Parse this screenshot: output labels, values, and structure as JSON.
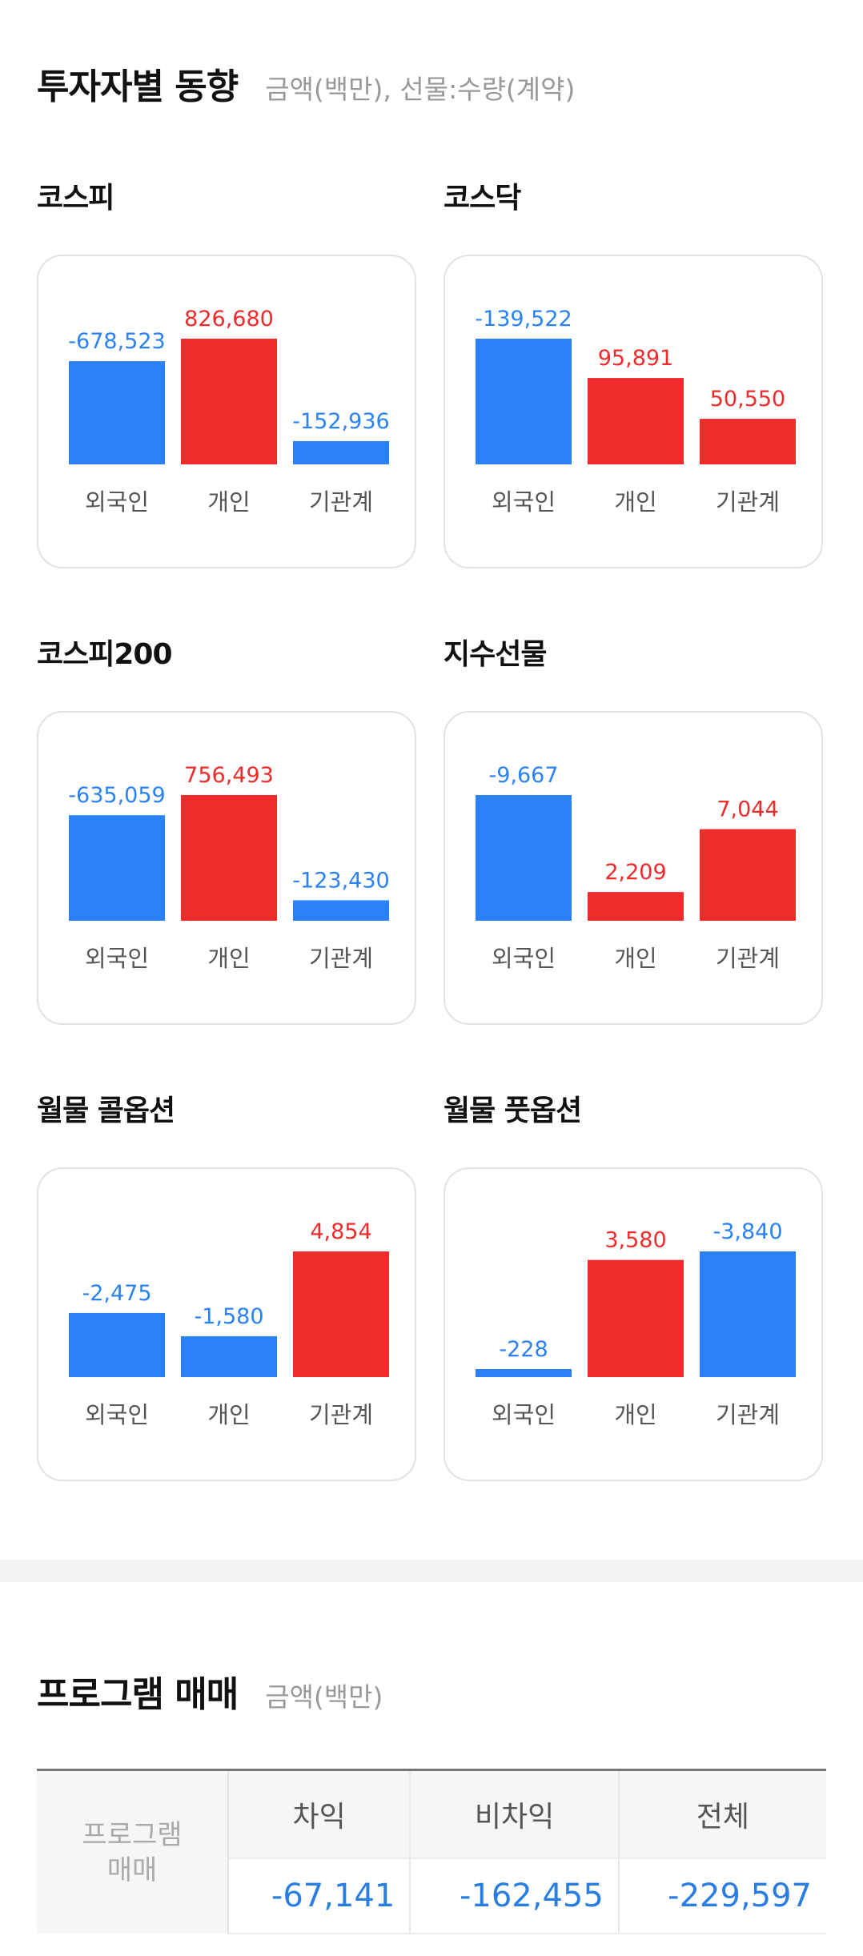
{
  "investor": {
    "title": "투자자별 동향",
    "unit": "금액(백만), 선물:수량(계약)",
    "colors": {
      "positive": "#ef2b2b",
      "negative": "#2a82f6"
    },
    "charts": [
      {
        "title": "코스피",
        "categories": [
          "외국인",
          "개인",
          "기관계"
        ],
        "labels": [
          "-678,523",
          "826,680",
          "-152,936"
        ],
        "values": [
          -678523,
          826680,
          -152936
        ]
      },
      {
        "title": "코스닥",
        "categories": [
          "외국인",
          "개인",
          "기관계"
        ],
        "labels": [
          "-139,522",
          "95,891",
          "50,550"
        ],
        "values": [
          -139522,
          95891,
          50550
        ]
      },
      {
        "title": "코스피200",
        "categories": [
          "외국인",
          "개인",
          "기관계"
        ],
        "labels": [
          "-635,059",
          "756,493",
          "-123,430"
        ],
        "values": [
          -635059,
          756493,
          -123430
        ]
      },
      {
        "title": "지수선물",
        "categories": [
          "외국인",
          "개인",
          "기관계"
        ],
        "labels": [
          "-9,667",
          "2,209",
          "7,044"
        ],
        "values": [
          -9667,
          2209,
          7044
        ]
      },
      {
        "title": "월물 콜옵션",
        "categories": [
          "외국인",
          "개인",
          "기관계"
        ],
        "labels": [
          "-2,475",
          "-1,580",
          "4,854"
        ],
        "values": [
          -2475,
          -1580,
          4854
        ]
      },
      {
        "title": "월물 풋옵션",
        "categories": [
          "외국인",
          "개인",
          "기관계"
        ],
        "labels": [
          "-228",
          "3,580",
          "-3,840"
        ],
        "values": [
          -228,
          3580,
          -3840
        ]
      }
    ]
  },
  "program": {
    "title": "프로그램 매매",
    "unit": "금액(백만)",
    "row_header_line1": "프로그램",
    "row_header_line2": "매매",
    "columns": [
      "차익",
      "비차익",
      "전체"
    ],
    "values": [
      "-67,141",
      "-162,455",
      "-229,597"
    ]
  },
  "chart_data": [
    {
      "type": "bar",
      "title": "코스피",
      "categories": [
        "외국인",
        "개인",
        "기관계"
      ],
      "values": [
        -678523,
        826680,
        -152936
      ]
    },
    {
      "type": "bar",
      "title": "코스닥",
      "categories": [
        "외국인",
        "개인",
        "기관계"
      ],
      "values": [
        -139522,
        95891,
        50550
      ]
    },
    {
      "type": "bar",
      "title": "코스피200",
      "categories": [
        "외국인",
        "개인",
        "기관계"
      ],
      "values": [
        -635059,
        756493,
        -123430
      ]
    },
    {
      "type": "bar",
      "title": "지수선물",
      "categories": [
        "외국인",
        "개인",
        "기관계"
      ],
      "values": [
        -9667,
        2209,
        7044
      ]
    },
    {
      "type": "bar",
      "title": "월물 콜옵션",
      "categories": [
        "외국인",
        "개인",
        "기관계"
      ],
      "values": [
        -2475,
        -1580,
        4854
      ]
    },
    {
      "type": "bar",
      "title": "월물 풋옵션",
      "categories": [
        "외국인",
        "개인",
        "기관계"
      ],
      "values": [
        -228,
        3580,
        -3840
      ]
    }
  ]
}
